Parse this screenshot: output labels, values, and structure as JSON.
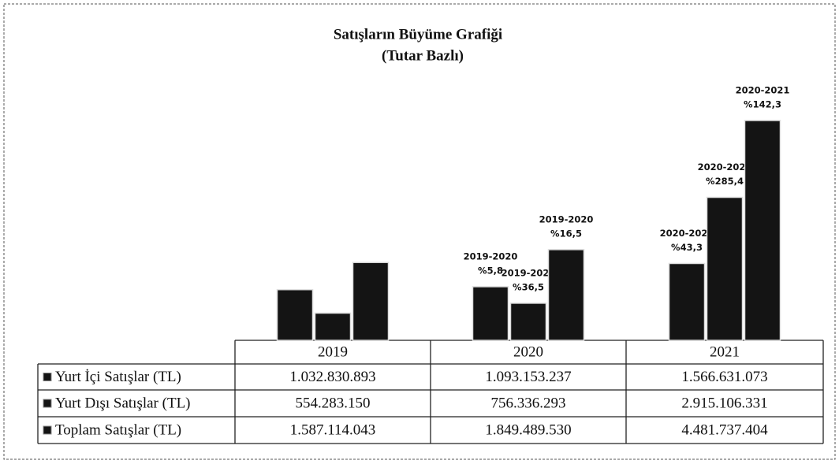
{
  "chart_data": {
    "type": "bar",
    "title": "Satışların Büyüme Grafiği",
    "subtitle": "(Tutar Bazlı)",
    "categories": [
      "2019",
      "2020",
      "2021"
    ],
    "series": [
      {
        "name": "Yurt İçi Satışlar (TL)",
        "color": "#141414",
        "values": [
          1032830893,
          1093153237,
          1566631073
        ],
        "value_labels": [
          "1.032.830.893",
          "1.093.153.237",
          "1.566.631.073"
        ],
        "growth_labels": [
          null,
          {
            "period": "2019-2020",
            "rate": "%5,8"
          },
          {
            "period": "2020-2021",
            "rate": "%43,3"
          }
        ]
      },
      {
        "name": "Yurt Dışı Satışlar (TL)",
        "color": "#141414",
        "values": [
          554283150,
          756336293,
          2915106331
        ],
        "value_labels": [
          "554.283.150",
          "756.336.293",
          "2.915.106.331"
        ],
        "growth_labels": [
          null,
          {
            "period": "2019-2020",
            "rate": "%36,5"
          },
          {
            "period": "2020-2021",
            "rate": "%285,4"
          }
        ]
      },
      {
        "name": "Toplam Satışlar (TL)",
        "color": "#141414",
        "values": [
          1587114043,
          1849489530,
          4481737404
        ],
        "value_labels": [
          "1.587.114.043",
          "1.849.489.530",
          "4.481.737.404"
        ],
        "growth_labels": [
          null,
          {
            "period": "2019-2020",
            "rate": "%16,5"
          },
          {
            "period": "2020-2021",
            "rate": "%142,3"
          }
        ]
      }
    ]
  }
}
